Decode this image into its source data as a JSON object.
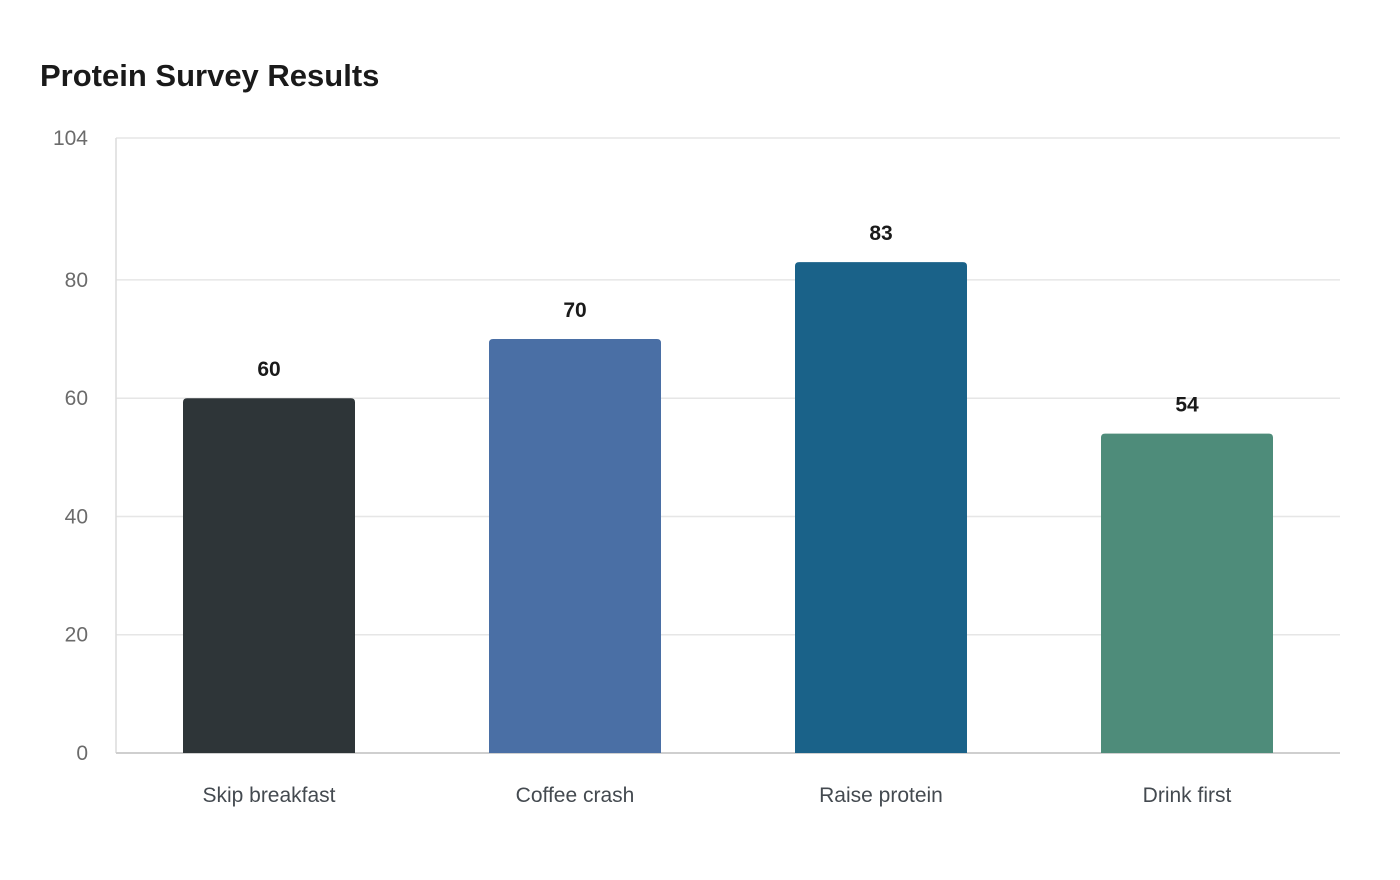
{
  "chart_data": {
    "type": "bar",
    "title": "Protein Survey Results",
    "xlabel": "",
    "ylabel": "",
    "categories": [
      "Skip breakfast",
      "Coffee crash",
      "Raise protein",
      "Drink first"
    ],
    "values": [
      60,
      70,
      83,
      54
    ],
    "ylim": [
      0,
      104
    ],
    "yticks": [
      0,
      20,
      40,
      60,
      80,
      104
    ],
    "grid": true,
    "legend": "none",
    "colors": [
      "#2e3538",
      "#4a6fa5",
      "#1a6289",
      "#4e8c7a"
    ]
  }
}
